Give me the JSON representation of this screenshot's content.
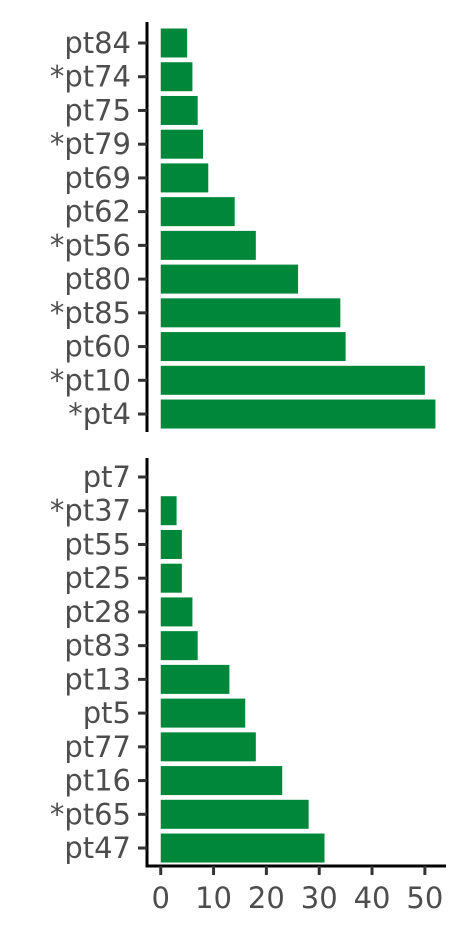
{
  "chart_data": [
    {
      "type": "bar",
      "orientation": "horizontal",
      "categories": [
        "pt84",
        "*pt74",
        "pt75",
        "*pt79",
        "pt69",
        "pt62",
        "*pt56",
        "pt80",
        "*pt85",
        "pt60",
        "*pt10",
        "*pt4"
      ],
      "values": [
        5,
        6,
        7,
        8,
        9,
        14,
        18,
        26,
        34,
        35,
        50,
        52
      ],
      "xlim": [
        -2.6,
        54
      ],
      "bar_color": "#00873A",
      "grid": false
    },
    {
      "type": "bar",
      "orientation": "horizontal",
      "categories": [
        "pt7",
        "*pt37",
        "pt55",
        "pt25",
        "pt28",
        "pt83",
        "pt13",
        "pt5",
        "pt77",
        "pt16",
        "*pt65",
        "pt47"
      ],
      "values": [
        0,
        3,
        4,
        4,
        6,
        7,
        13,
        16,
        18,
        23,
        28,
        31
      ],
      "xlim": [
        -2.6,
        54
      ],
      "xticks": [
        0,
        10,
        20,
        30,
        40,
        50
      ],
      "bar_color": "#00873A",
      "grid": false
    }
  ]
}
